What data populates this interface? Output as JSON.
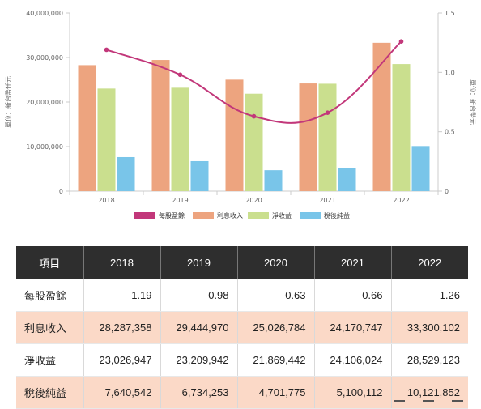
{
  "chart_data": {
    "type": "bar",
    "categories": [
      "2018",
      "2019",
      "2020",
      "2021",
      "2022"
    ],
    "y_left": {
      "title": "單位：新台幣仟元",
      "ylim": [
        0,
        40000000
      ],
      "ticks": [
        "0",
        "10,000,000",
        "20,000,000",
        "30,000,000",
        "40,000,000"
      ]
    },
    "y_right": {
      "title": "單位：新台幣元",
      "ylim": [
        0,
        1.5
      ],
      "ticks": [
        "0",
        "0.5",
        "1.0",
        "1.5"
      ]
    },
    "series": [
      {
        "name": "每股盈餘",
        "type": "line",
        "axis": "right",
        "color": "#c2377a",
        "values": [
          1.19,
          0.98,
          0.63,
          0.66,
          1.26
        ]
      },
      {
        "name": "利息收入",
        "type": "bar",
        "axis": "left",
        "color": "#eda47f",
        "values": [
          28287358,
          29444970,
          25026784,
          24170747,
          33300102
        ]
      },
      {
        "name": "淨收益",
        "type": "bar",
        "axis": "left",
        "color": "#cadf8e",
        "values": [
          23026947,
          23209942,
          21869442,
          24106024,
          28529123
        ]
      },
      {
        "name": "稅後純益",
        "type": "bar",
        "axis": "left",
        "color": "#79c5e9",
        "values": [
          7640542,
          6734253,
          4701775,
          5100112,
          10121852
        ]
      }
    ],
    "legend_position": "bottom",
    "grid": false
  },
  "table": {
    "header": [
      "項目",
      "2018",
      "2019",
      "2020",
      "2021",
      "2022"
    ],
    "rows": [
      {
        "label": "每股盈餘",
        "values": [
          "1.19",
          "0.98",
          "0.63",
          "0.66",
          "1.26"
        ],
        "shaded": false
      },
      {
        "label": "利息收入",
        "values": [
          "28,287,358",
          "29,444,970",
          "25,026,784",
          "24,170,747",
          "33,300,102"
        ],
        "shaded": true
      },
      {
        "label": "淨收益",
        "values": [
          "23,026,947",
          "23,209,942",
          "21,869,442",
          "24,106,024",
          "28,529,123"
        ],
        "shaded": false
      },
      {
        "label": "稅後純益",
        "values": [
          "7,640,542",
          "6,734,253",
          "4,701,775",
          "5,100,112",
          "10,121,852"
        ],
        "shaded": true
      }
    ]
  }
}
